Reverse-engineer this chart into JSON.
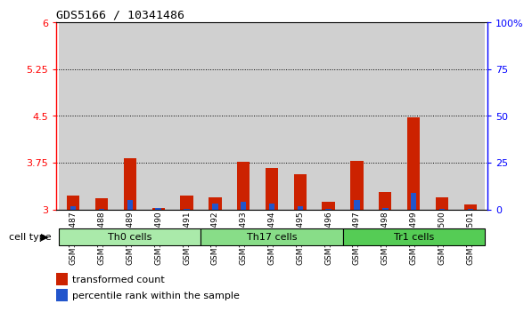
{
  "title": "GDS5166 / 10341486",
  "samples": [
    "GSM1350487",
    "GSM1350488",
    "GSM1350489",
    "GSM1350490",
    "GSM1350491",
    "GSM1350492",
    "GSM1350493",
    "GSM1350494",
    "GSM1350495",
    "GSM1350496",
    "GSM1350497",
    "GSM1350498",
    "GSM1350499",
    "GSM1350500",
    "GSM1350501"
  ],
  "red_values": [
    3.22,
    3.18,
    3.82,
    3.02,
    3.22,
    3.2,
    3.76,
    3.66,
    3.56,
    3.12,
    3.78,
    3.28,
    4.48,
    3.2,
    3.08
  ],
  "blue_values": [
    0.05,
    0.01,
    0.16,
    0.02,
    0.01,
    0.09,
    0.13,
    0.09,
    0.06,
    0.01,
    0.15,
    0.03,
    0.26,
    0.01,
    0.01
  ],
  "cell_groups": [
    {
      "label": "Th0 cells",
      "start": 0,
      "end": 4,
      "color": "#aaeaaa"
    },
    {
      "label": "Th17 cells",
      "start": 5,
      "end": 9,
      "color": "#88dd88"
    },
    {
      "label": "Tr1 cells",
      "start": 10,
      "end": 14,
      "color": "#55cc55"
    }
  ],
  "ylim_left": [
    3.0,
    6.0
  ],
  "ylim_right": [
    0,
    100
  ],
  "yticks_left": [
    3.0,
    3.75,
    4.5,
    5.25,
    6.0
  ],
  "ytick_labels_left": [
    "3",
    "3.75",
    "4.5",
    "5.25",
    "6"
  ],
  "yticks_right_vals": [
    0,
    25,
    50,
    75,
    100
  ],
  "ytick_labels_right": [
    "0",
    "25",
    "50",
    "75",
    "100%"
  ],
  "dotted_lines": [
    5.25,
    4.5,
    3.75
  ],
  "bar_color_red": "#cc2200",
  "bar_color_blue": "#2255cc",
  "col_bg_color": "#d0d0d0",
  "legend_red": "transformed count",
  "legend_blue": "percentile rank within the sample",
  "cell_type_label": "cell type"
}
